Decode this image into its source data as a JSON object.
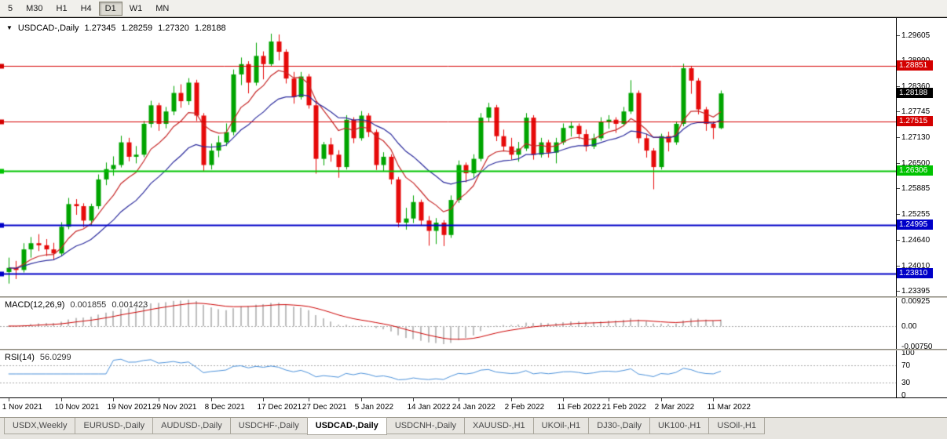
{
  "toolbar": {
    "timeframes": [
      "5",
      "M30",
      "H1",
      "H4",
      "D1",
      "W1",
      "MN"
    ],
    "active_timeframe": "D1"
  },
  "chart": {
    "symbol_label": "USDCAD-,Daily",
    "ohlc": {
      "open": "1.27345",
      "high": "1.28259",
      "low": "1.27320",
      "close": "1.28188"
    },
    "y_axis_labels": [
      "1.29605",
      "1.28990",
      "1.28360",
      "1.27745",
      "1.27130",
      "1.26500",
      "1.25885",
      "1.25255",
      "1.24640",
      "1.24010",
      "1.23395"
    ],
    "price_lines": [
      {
        "price": 1.28851,
        "label": "1.28851",
        "color": "#d40000",
        "width": 1
      },
      {
        "price": 1.27515,
        "label": "1.27515",
        "color": "#d40000",
        "width": 1
      },
      {
        "price": 1.26306,
        "label": "1.26306",
        "color": "#00c300",
        "width": 2
      },
      {
        "price": 1.24995,
        "label": "1.24995",
        "color": "#0000c8",
        "width": 2
      },
      {
        "price": 1.2381,
        "label": "1.23810",
        "color": "#0000c8",
        "width": 2
      }
    ],
    "current_price_tag": {
      "label": "1.28188",
      "value": 1.28188,
      "bg": "#000000"
    },
    "x_axis_labels": [
      {
        "i": 0,
        "label": "1 Nov 2021"
      },
      {
        "i": 7,
        "label": "10 Nov 2021"
      },
      {
        "i": 14,
        "label": "19 Nov 2021"
      },
      {
        "i": 20,
        "label": "29 Nov 2021"
      },
      {
        "i": 27,
        "label": "8 Dec 2021"
      },
      {
        "i": 34,
        "label": "17 Dec 2021"
      },
      {
        "i": 40,
        "label": "27 Dec 2021"
      },
      {
        "i": 47,
        "label": "5 Jan 2022"
      },
      {
        "i": 54,
        "label": "14 Jan 2022"
      },
      {
        "i": 60,
        "label": "24 Jan 2022"
      },
      {
        "i": 67,
        "label": "2 Feb 2022"
      },
      {
        "i": 74,
        "label": "11 Feb 2022"
      },
      {
        "i": 80,
        "label": "21 Feb 2022"
      },
      {
        "i": 87,
        "label": "2 Mar 2022"
      },
      {
        "i": 94,
        "label": "11 Mar 2022"
      }
    ],
    "colors": {
      "bull": "#00a400",
      "bear": "#e60a0a",
      "macd_hist": "#bdbdbd",
      "macd_signal": "#cc0000",
      "rsi_line": "#4a90d9",
      "grid_dash": "#a8a8a8"
    }
  },
  "chart_data": {
    "type": "candlestick",
    "symbol": "USDCAD-",
    "timeframe": "Daily",
    "ohlc_current": {
      "open": 1.27345,
      "high": 1.28259,
      "low": 1.2732,
      "close": 1.28188
    },
    "horizontal_levels": [
      1.28851,
      1.27515,
      1.26306,
      1.24995,
      1.2381
    ],
    "moving_averages": [
      {
        "name": "ma-fast",
        "period": 8,
        "color": "#c62828"
      },
      {
        "name": "ma-slow",
        "period": 18,
        "color": "#2a2a9c"
      }
    ],
    "candles": [
      [
        1.2385,
        1.242,
        1.2357,
        1.2395
      ],
      [
        1.2395,
        1.2412,
        1.2368,
        1.239
      ],
      [
        1.239,
        1.2455,
        1.2384,
        1.244
      ],
      [
        1.244,
        1.247,
        1.242,
        1.2455
      ],
      [
        1.2455,
        1.2477,
        1.2436,
        1.245
      ],
      [
        1.245,
        1.2465,
        1.2424,
        1.244
      ],
      [
        1.244,
        1.2456,
        1.2414,
        1.243
      ],
      [
        1.243,
        1.2506,
        1.2423,
        1.2495
      ],
      [
        1.2495,
        1.2565,
        1.2489,
        1.255
      ],
      [
        1.255,
        1.2562,
        1.2524,
        1.2545
      ],
      [
        1.2545,
        1.2552,
        1.2494,
        1.251
      ],
      [
        1.251,
        1.2551,
        1.2499,
        1.2545
      ],
      [
        1.2545,
        1.2622,
        1.2538,
        1.261
      ],
      [
        1.261,
        1.2651,
        1.2596,
        1.2635
      ],
      [
        1.2635,
        1.2666,
        1.2619,
        1.2645
      ],
      [
        1.2645,
        1.2716,
        1.2639,
        1.27
      ],
      [
        1.27,
        1.2711,
        1.2654,
        1.2665
      ],
      [
        1.2665,
        1.2691,
        1.2649,
        1.267
      ],
      [
        1.267,
        1.2752,
        1.2664,
        1.2745
      ],
      [
        1.2745,
        1.2801,
        1.2736,
        1.279
      ],
      [
        1.279,
        1.2796,
        1.2728,
        1.2745
      ],
      [
        1.2745,
        1.2786,
        1.2734,
        1.2775
      ],
      [
        1.2775,
        1.2837,
        1.2766,
        1.282
      ],
      [
        1.282,
        1.2841,
        1.2784,
        1.28
      ],
      [
        1.28,
        1.2856,
        1.2791,
        1.2845
      ],
      [
        1.2845,
        1.2852,
        1.2752,
        1.2765
      ],
      [
        1.2765,
        1.2771,
        1.263,
        1.2645
      ],
      [
        1.2645,
        1.2697,
        1.2634,
        1.268
      ],
      [
        1.268,
        1.2716,
        1.2664,
        1.27
      ],
      [
        1.27,
        1.2746,
        1.2691,
        1.2725
      ],
      [
        1.2725,
        1.2877,
        1.2717,
        1.2865
      ],
      [
        1.2865,
        1.2906,
        1.2839,
        1.289
      ],
      [
        1.289,
        1.2897,
        1.2819,
        1.2845
      ],
      [
        1.2845,
        1.2942,
        1.2838,
        1.291
      ],
      [
        1.291,
        1.2921,
        1.2853,
        1.289
      ],
      [
        1.289,
        1.2964,
        1.2884,
        1.2945
      ],
      [
        1.2945,
        1.2962,
        1.2899,
        1.292
      ],
      [
        1.292,
        1.2926,
        1.2843,
        1.2855
      ],
      [
        1.2855,
        1.2871,
        1.2794,
        1.281
      ],
      [
        1.281,
        1.2871,
        1.2804,
        1.286
      ],
      [
        1.286,
        1.2866,
        1.2782,
        1.279
      ],
      [
        1.279,
        1.2801,
        1.2624,
        1.266
      ],
      [
        1.266,
        1.2701,
        1.2644,
        1.2695
      ],
      [
        1.2695,
        1.2711,
        1.2653,
        1.267
      ],
      [
        1.267,
        1.2681,
        1.2614,
        1.264
      ],
      [
        1.264,
        1.2766,
        1.2634,
        1.2755
      ],
      [
        1.2755,
        1.2761,
        1.2698,
        1.271
      ],
      [
        1.271,
        1.2776,
        1.2704,
        1.2765
      ],
      [
        1.2765,
        1.2771,
        1.2713,
        1.2725
      ],
      [
        1.2725,
        1.2731,
        1.2633,
        1.2645
      ],
      [
        1.2645,
        1.2676,
        1.2629,
        1.2665
      ],
      [
        1.2665,
        1.2671,
        1.2598,
        1.261
      ],
      [
        1.261,
        1.2616,
        1.2494,
        1.2505
      ],
      [
        1.2505,
        1.2541,
        1.2488,
        1.2515
      ],
      [
        1.2515,
        1.2571,
        1.2504,
        1.2555
      ],
      [
        1.2555,
        1.2561,
        1.2498,
        1.251
      ],
      [
        1.251,
        1.2521,
        1.2449,
        1.2485
      ],
      [
        1.2485,
        1.2516,
        1.2453,
        1.2505
      ],
      [
        1.2505,
        1.2511,
        1.2448,
        1.2475
      ],
      [
        1.2475,
        1.2571,
        1.2468,
        1.256
      ],
      [
        1.256,
        1.2656,
        1.2553,
        1.2645
      ],
      [
        1.2645,
        1.2651,
        1.2603,
        1.2625
      ],
      [
        1.2625,
        1.2671,
        1.2614,
        1.266
      ],
      [
        1.266,
        1.2771,
        1.2654,
        1.276
      ],
      [
        1.276,
        1.2796,
        1.2749,
        1.2785
      ],
      [
        1.2785,
        1.2791,
        1.2703,
        1.2715
      ],
      [
        1.2715,
        1.2731,
        1.2678,
        1.269
      ],
      [
        1.269,
        1.2711,
        1.2658,
        1.267
      ],
      [
        1.267,
        1.2701,
        1.2653,
        1.2685
      ],
      [
        1.2685,
        1.2771,
        1.2679,
        1.276
      ],
      [
        1.276,
        1.2766,
        1.2658,
        1.267
      ],
      [
        1.267,
        1.2711,
        1.2663,
        1.27
      ],
      [
        1.27,
        1.2706,
        1.2663,
        1.2675
      ],
      [
        1.2675,
        1.2711,
        1.2649,
        1.27
      ],
      [
        1.27,
        1.2746,
        1.2694,
        1.2735
      ],
      [
        1.2735,
        1.2751,
        1.2714,
        1.274
      ],
      [
        1.274,
        1.2746,
        1.2708,
        1.272
      ],
      [
        1.272,
        1.2731,
        1.2678,
        1.269
      ],
      [
        1.269,
        1.2721,
        1.2684,
        1.271
      ],
      [
        1.271,
        1.2761,
        1.2704,
        1.275
      ],
      [
        1.275,
        1.2766,
        1.2733,
        1.2755
      ],
      [
        1.2755,
        1.2761,
        1.2723,
        1.2745
      ],
      [
        1.2745,
        1.2786,
        1.2739,
        1.2775
      ],
      [
        1.2775,
        1.2851,
        1.2769,
        1.282
      ],
      [
        1.282,
        1.2826,
        1.2698,
        1.271
      ],
      [
        1.271,
        1.2721,
        1.2663,
        1.268
      ],
      [
        1.268,
        1.2686,
        1.2586,
        1.264
      ],
      [
        1.264,
        1.2721,
        1.2634,
        1.2715
      ],
      [
        1.2715,
        1.2726,
        1.2678,
        1.27
      ],
      [
        1.27,
        1.2751,
        1.2694,
        1.2745
      ],
      [
        1.2745,
        1.2891,
        1.2739,
        1.288
      ],
      [
        1.288,
        1.2886,
        1.2818,
        1.285
      ],
      [
        1.285,
        1.2856,
        1.2768,
        1.278
      ],
      [
        1.278,
        1.2786,
        1.2728,
        1.2745
      ],
      [
        1.2745,
        1.2751,
        1.2708,
        1.2735
      ],
      [
        1.27345,
        1.28259,
        1.2732,
        1.28188
      ]
    ]
  },
  "macd": {
    "label": "MACD(12,26,9)",
    "main_value": "0.001855",
    "signal_value": "0.001423",
    "fast": 12,
    "slow": 26,
    "signal": 9,
    "axis_labels": [
      {
        "v": 0.00925,
        "label": "0.00925"
      },
      {
        "v": 0,
        "label": "0.00"
      },
      {
        "v": -0.0075,
        "label": "-0.00750"
      }
    ]
  },
  "rsi": {
    "label": "RSI(14)",
    "value": "56.0299",
    "period": 14,
    "levels": [
      70,
      30
    ],
    "axis_labels": [
      {
        "v": 100,
        "label": "100"
      },
      {
        "v": 70,
        "label": "70"
      },
      {
        "v": 30,
        "label": "30"
      },
      {
        "v": 0,
        "label": "0"
      }
    ]
  },
  "tabs": [
    {
      "label": "USDX,Weekly",
      "active": false
    },
    {
      "label": "EURUSD-,Daily",
      "active": false
    },
    {
      "label": "AUDUSD-,Daily",
      "active": false
    },
    {
      "label": "USDCHF-,Daily",
      "active": false
    },
    {
      "label": "USDCAD-,Daily",
      "active": true
    },
    {
      "label": "USDCNH-,Daily",
      "active": false
    },
    {
      "label": "XAUUSD-,H1",
      "active": false
    },
    {
      "label": "UKOil-,H1",
      "active": false
    },
    {
      "label": "DJ30-,Daily",
      "active": false
    },
    {
      "label": "UK100-,H1",
      "active": false
    },
    {
      "label": "USOil-,H1",
      "active": false
    }
  ]
}
